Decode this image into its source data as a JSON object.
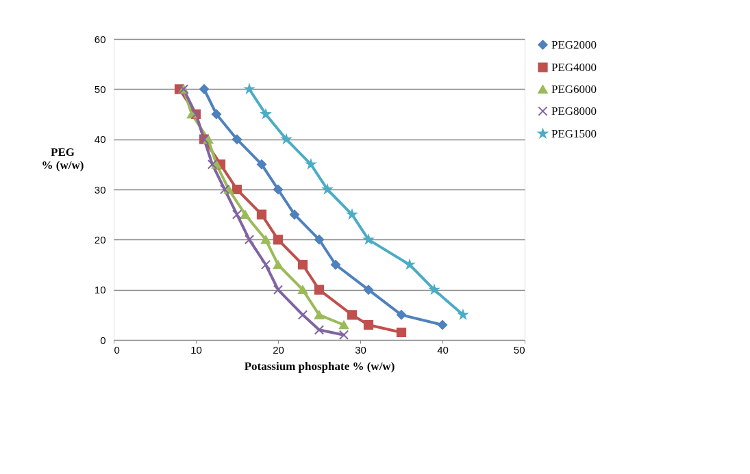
{
  "chart_data": {
    "type": "line",
    "xlabel": "Potassium phosphate % (w/w)",
    "ylabel": "PEG\n% (w/w)",
    "xlim": [
      0,
      50
    ],
    "xticks": [
      0,
      10,
      20,
      30,
      40,
      50
    ],
    "ylim": [
      0,
      60
    ],
    "yticks": [
      0,
      10,
      20,
      30,
      40,
      50,
      60
    ],
    "grid": "y",
    "legend": "right",
    "line_style": "solid",
    "series": [
      {
        "name": "PEG2000",
        "color": "#4f81bd",
        "marker": "diamond",
        "x": [
          11,
          12.5,
          15,
          18,
          20,
          22,
          25,
          27,
          31,
          35,
          40
        ],
        "values": [
          50,
          45,
          40,
          35,
          30,
          25,
          20,
          15,
          10,
          5,
          3
        ]
      },
      {
        "name": "PEG4000",
        "color": "#c0504d",
        "marker": "square",
        "x": [
          8,
          10,
          11,
          13,
          15,
          18,
          20,
          23,
          25,
          29,
          31,
          35
        ],
        "values": [
          50,
          45,
          40,
          35,
          30,
          25,
          20,
          15,
          10,
          5,
          3,
          1.5
        ]
      },
      {
        "name": "PEG6000",
        "color": "#9bbb59",
        "marker": "triangle",
        "x": [
          8.5,
          9.5,
          11.5,
          12.5,
          14,
          16,
          18.5,
          20,
          23,
          25,
          28
        ],
        "values": [
          50,
          45,
          40,
          35,
          30,
          25,
          20,
          15,
          10,
          5,
          3
        ]
      },
      {
        "name": "PEG8000",
        "color": "#8064a2",
        "marker": "cross",
        "x": [
          8.5,
          10,
          11,
          12,
          13.5,
          15,
          16.5,
          18.5,
          20,
          23,
          25,
          28
        ],
        "values": [
          50,
          45,
          40,
          35,
          30,
          25,
          20,
          15,
          10,
          5,
          2,
          1
        ]
      },
      {
        "name": "PEG1500",
        "color": "#4bacc6",
        "marker": "star",
        "x": [
          16.5,
          18.5,
          21,
          24,
          26,
          29,
          31,
          36,
          39,
          42.5
        ],
        "values": [
          50,
          45,
          40,
          35,
          30,
          25,
          20,
          15,
          10,
          5
        ]
      }
    ]
  }
}
